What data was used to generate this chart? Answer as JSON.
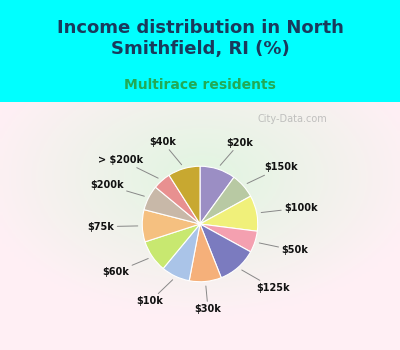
{
  "title": "Income distribution in North\nSmithfield, RI (%)",
  "subtitle": "Multirace residents",
  "labels": [
    "$20k",
    "$150k",
    "$100k",
    "$50k",
    "$125k",
    "$30k",
    "$10k",
    "$60k",
    "$75k",
    "$200k",
    "> $200k",
    "$40k"
  ],
  "values": [
    10,
    7,
    10,
    6,
    11,
    9,
    8,
    9,
    9,
    7,
    5,
    9
  ],
  "colors": [
    "#9b8ec4",
    "#b8c9a3",
    "#f0f07a",
    "#f4a0b0",
    "#7b7bbf",
    "#f5b07a",
    "#aac4e8",
    "#c8e870",
    "#f5c080",
    "#c8b8a8",
    "#e89090",
    "#c8a830"
  ],
  "bg_cyan": "#00ffff",
  "chart_bg_color": "#e0f0e8",
  "title_color": "#1a3a5c",
  "subtitle_color": "#22aa55",
  "watermark": "City-Data.com",
  "title_fontsize": 13,
  "subtitle_fontsize": 10
}
